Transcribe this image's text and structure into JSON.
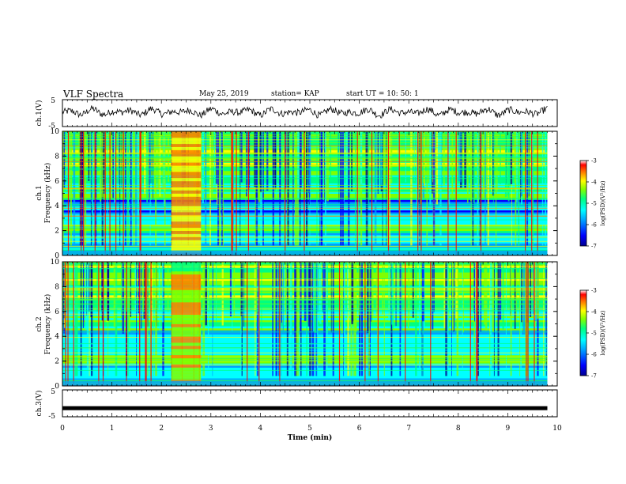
{
  "header": {
    "title": "VLF Spectra",
    "date": "May 25, 2019",
    "station": "station= KAP",
    "start": "start  UT  =   10: 50: 1"
  },
  "chart_data": [
    {
      "type": "line",
      "panel": "ch1-waveform",
      "ylabel": "ch.1(V)",
      "ylim": [
        -5,
        5
      ],
      "yticks": [
        "5",
        "-5"
      ],
      "xlim": [
        0,
        10
      ],
      "series": [
        {
          "values_range": [
            -2,
            3
          ]
        }
      ]
    },
    {
      "type": "heatmap",
      "panel": "ch1-spectrogram",
      "ylabel": "ch.1\nFrequency  (kHz)",
      "ylim": [
        0,
        10
      ],
      "yticks": [
        "0",
        "2",
        "4",
        "6",
        "8",
        "10"
      ],
      "xlim": [
        0,
        9.8
      ],
      "intense_burst_min": [
        2.2,
        2.8
      ],
      "colorbar": {
        "label": "log(PSD)(V²/Hz)",
        "range": [
          -7,
          -3
        ],
        "ticks": [
          "-3",
          "-4",
          "-5",
          "-6",
          "-7"
        ],
        "colors": [
          "#000090",
          "#0000ff",
          "#00a0ff",
          "#00ffff",
          "#00ff80",
          "#80ff00",
          "#ffff00",
          "#ff8000",
          "#ff0000",
          "#ffffff"
        ]
      }
    },
    {
      "type": "heatmap",
      "panel": "ch2-spectrogram",
      "ylabel": "ch.2\nFrequency  (kHz)",
      "ylim": [
        0,
        10
      ],
      "yticks": [
        "0",
        "2",
        "4",
        "6",
        "8",
        "10"
      ],
      "xlim": [
        0,
        9.8
      ],
      "intense_burst_min": [
        2.2,
        2.8
      ],
      "colorbar": {
        "label": "log(PSD)(V²/Hz)",
        "range": [
          -7,
          -3
        ],
        "ticks": [
          "-3",
          "-4",
          "-5",
          "-6",
          "-7"
        ]
      }
    },
    {
      "type": "line",
      "panel": "ch3-waveform",
      "ylabel": "ch.3(V)",
      "ylim": [
        -5,
        5
      ],
      "yticks": [
        "5",
        "-5"
      ],
      "xlim": [
        0,
        10
      ],
      "series": [
        {
          "constant": -1.8
        }
      ]
    }
  ],
  "xaxis": {
    "label": "Time  (min)",
    "ticks": [
      "0",
      "1",
      "2",
      "3",
      "4",
      "5",
      "6",
      "7",
      "8",
      "9",
      "10"
    ],
    "range": [
      0,
      10
    ]
  }
}
